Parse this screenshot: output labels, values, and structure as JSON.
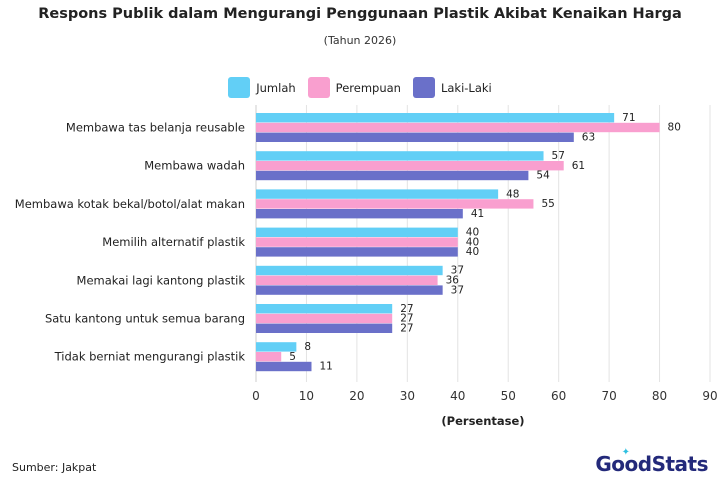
{
  "header": {
    "title": "Respons Publik dalam Mengurangi Penggunaan Plastik Akibat Kenaikan Harga",
    "subtitle": "(Tahun 2026)"
  },
  "footer": {
    "source": "Sumber: Jakpat",
    "logo_text": "GoodStats",
    "logo_icon": "sparkle-icon"
  },
  "chart_data": {
    "type": "bar",
    "orientation": "horizontal",
    "title": "Respons Publik dalam Mengurangi Penggunaan Plastik Akibat Kenaikan Harga",
    "subtitle": "(Tahun 2026)",
    "xlabel": "(Persentase)",
    "ylabel": "",
    "xlim": [
      0,
      90
    ],
    "xticks": [
      0,
      10,
      20,
      30,
      40,
      50,
      60,
      70,
      80,
      90
    ],
    "grid": "vertical",
    "legend_position": "top-center",
    "categories": [
      "Membawa tas belanja reusable",
      "Membawa wadah",
      "Membawa kotak bekal/botol/alat makan",
      "Memilih alternatif plastik",
      "Memakai lagi kantong plastik",
      "Satu kantong untuk semua barang",
      "Tidak berniat mengurangi plastik"
    ],
    "series": [
      {
        "name": "Jumlah",
        "color": "#62cff6",
        "values": [
          71,
          57,
          48,
          40,
          37,
          27,
          8
        ]
      },
      {
        "name": "Perempuan",
        "color": "#f99fcf",
        "values": [
          80,
          61,
          55,
          40,
          36,
          27,
          5
        ]
      },
      {
        "name": "Laki-Laki",
        "color": "#6a70c9",
        "values": [
          63,
          54,
          41,
          40,
          37,
          27,
          11
        ]
      }
    ]
  }
}
